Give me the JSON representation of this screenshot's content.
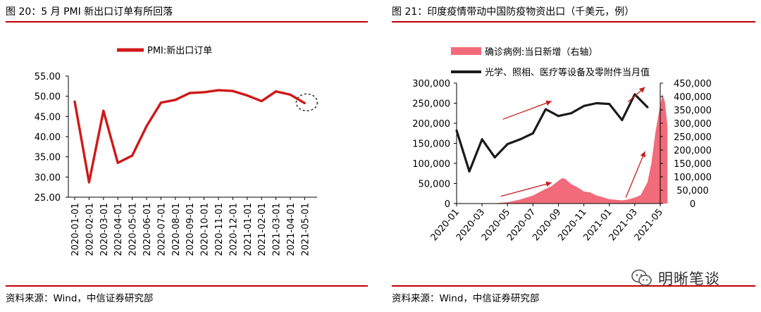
{
  "left": {
    "title": "图 20：5 月 PMI 新出口订单有所回落",
    "source": "资料来源：Wind，中信证券研究部"
  },
  "right": {
    "title": "图 21：印度疫情带动中国防疫物资出口（千美元，例）",
    "source": "资料来源：Wind，中信证券研究部"
  },
  "watermark": {
    "text": "明晰笔谈",
    "icon": "wechat-icon"
  },
  "colors": {
    "accent": "#c00000",
    "line_red": "#d01818",
    "area_pink": "#f26b7a",
    "line_black": "#1a1a1a",
    "arrow": "#c81e1e"
  },
  "chart_data": [
    {
      "type": "line",
      "title": "",
      "xlabel": "",
      "ylabel": "",
      "categories": [
        "2020-01-01",
        "2020-02-01",
        "2020-03-01",
        "2020-04-01",
        "2020-05-01",
        "2020-06-01",
        "2020-07-01",
        "2020-08-01",
        "2020-09-01",
        "2020-10-01",
        "2020-11-01",
        "2020-12-01",
        "2021-01-01",
        "2021-02-01",
        "2021-03-01",
        "2021-04-01",
        "2021-05-01"
      ],
      "ylim": [
        25,
        55
      ],
      "yticks": [
        "25.00",
        "30.00",
        "35.00",
        "40.00",
        "45.00",
        "50.00",
        "55.00"
      ],
      "series": [
        {
          "name": "PMI:新出口订单",
          "values": [
            48.7,
            28.7,
            46.4,
            33.5,
            35.3,
            42.6,
            48.4,
            49.1,
            50.8,
            51.0,
            51.5,
            51.3,
            50.2,
            48.8,
            51.2,
            50.4,
            48.3
          ]
        }
      ],
      "legend_position": "top",
      "grid": false
    },
    {
      "type": "line",
      "title": "",
      "xlabel": "",
      "ylabel": "",
      "xticks": [
        "2020-01",
        "2020-03",
        "2020-05",
        "2020-07",
        "2020-09",
        "2020-11",
        "2021-01",
        "2021-03",
        "2021-05"
      ],
      "ylim_left": [
        0,
        300000
      ],
      "ylim_right": [
        0,
        450000
      ],
      "yticks_left": [
        "0",
        "50,000",
        "100,000",
        "150,000",
        "200,000",
        "250,000",
        "300,000"
      ],
      "yticks_right": [
        "0",
        "50,000",
        "100,000",
        "150,000",
        "200,000",
        "250,000",
        "300,000",
        "350,000",
        "400,000",
        "450,000"
      ],
      "series": [
        {
          "name": "确诊病例:当日新增（右轴）",
          "kind": "area",
          "axis": "right",
          "x": [
            "2020-03",
            "2020-04",
            "2020-05",
            "2020-06",
            "2020-07",
            "2020-08",
            "2020-08-15",
            "2020-09",
            "2020-09-10",
            "2020-09-17",
            "2020-10",
            "2020-10-15",
            "2020-11",
            "2020-11-15",
            "2020-12",
            "2020-12-15",
            "2021-01",
            "2021-01-15",
            "2021-02",
            "2021-02-15",
            "2021-03",
            "2021-03-15",
            "2021-04",
            "2021-04-10",
            "2021-04-20",
            "2021-04-30",
            "2021-05-06",
            "2021-05-12",
            "2021-05-18"
          ],
          "values": [
            0,
            1000,
            5000,
            15000,
            30000,
            55000,
            65000,
            85000,
            95000,
            92000,
            73000,
            62000,
            45000,
            42000,
            30000,
            24000,
            16000,
            14000,
            12000,
            15000,
            22000,
            32000,
            80000,
            150000,
            270000,
            360000,
            410000,
            380000,
            290000
          ]
        },
        {
          "name": "光学、照相、医疗等设备及零附件当月值",
          "kind": "line",
          "axis": "left",
          "x": [
            "2020-01",
            "2020-02",
            "2020-03",
            "2020-04",
            "2020-05",
            "2020-06",
            "2020-07",
            "2020-08",
            "2020-09",
            "2020-10",
            "2020-11",
            "2020-12",
            "2021-01",
            "2021-02",
            "2021-03",
            "2021-04"
          ],
          "values": [
            182000,
            80000,
            160000,
            115000,
            148000,
            160000,
            175000,
            235000,
            218000,
            225000,
            243000,
            250000,
            248000,
            208000,
            272000,
            240000
          ]
        }
      ],
      "legend_position": "top",
      "grid": false
    }
  ]
}
